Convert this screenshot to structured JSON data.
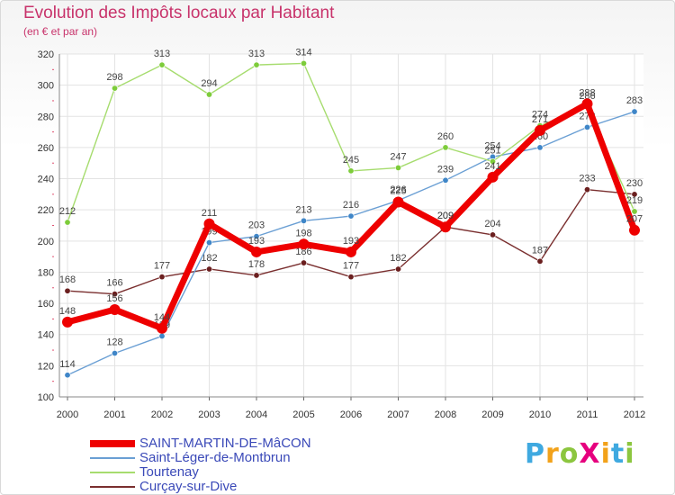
{
  "title": "Evolution des Impôts locaux par Habitant",
  "subtitle": "(en € et par an)",
  "logo": {
    "text": "ProXiti",
    "letters": [
      "P",
      "r",
      "o",
      "X",
      "i",
      "t",
      "i"
    ],
    "colors": [
      "#3fa9e0",
      "#f2a21a",
      "#8cc63f",
      "#e6007e",
      "#f2a21a",
      "#3fa9e0",
      "#8cc63f"
    ]
  },
  "chart_data": {
    "type": "line",
    "title": "Evolution des Impôts locaux par Habitant",
    "subtitle": "(en € et par an)",
    "categories": [
      "2000",
      "2001",
      "2002",
      "2003",
      "2004",
      "2005",
      "2006",
      "2007",
      "2008",
      "2009",
      "2010",
      "2011",
      "2012"
    ],
    "ylim": [
      100,
      320
    ],
    "yticks": [
      100,
      120,
      140,
      160,
      180,
      200,
      220,
      240,
      260,
      280,
      300,
      320
    ],
    "grid": true,
    "legend_position": "bottom-left",
    "series": [
      {
        "name": "SAINT-MARTIN-DE-MâCON",
        "color": "#ee0000",
        "width": 7,
        "values": [
          148,
          156,
          144,
          211,
          193,
          198,
          193,
          225,
          209,
          241,
          271,
          288,
          207
        ]
      },
      {
        "name": "Saint-Léger-de-Montbrun",
        "color": "#6a9fd4",
        "width": 1.4,
        "marker": "#3f86c8",
        "values": [
          114,
          128,
          139,
          199,
          203,
          213,
          216,
          226,
          239,
          254,
          260,
          273,
          283
        ]
      },
      {
        "name": "Tourtenay",
        "color": "#a6dc6e",
        "width": 1.4,
        "marker": "#7dcc3a",
        "values": [
          212,
          298,
          313,
          294,
          313,
          314,
          245,
          247,
          260,
          251,
          274,
          286,
          219
        ]
      },
      {
        "name": "Curçay-sur-Dive",
        "color": "#7a2f2f",
        "width": 1.4,
        "marker": "#6b1f1f",
        "values": [
          168,
          166,
          177,
          182,
          178,
          186,
          177,
          182,
          209,
          204,
          187,
          233,
          230
        ]
      }
    ]
  }
}
